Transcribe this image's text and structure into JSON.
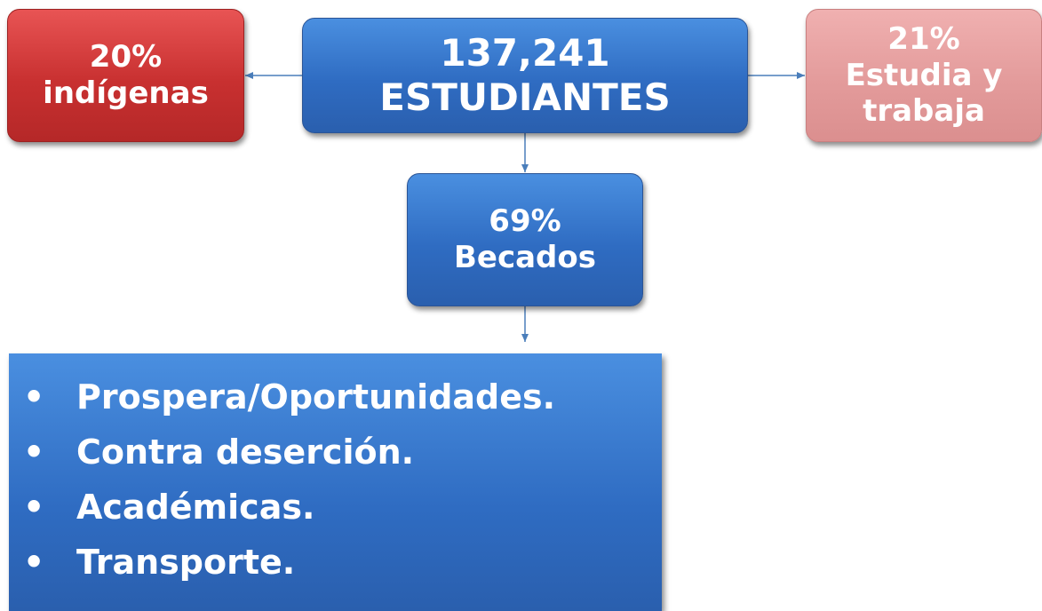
{
  "nodes": [
    {
      "lines": [
        "137,241",
        "ESTUDIANTES"
      ]
    },
    {
      "lines": [
        "20%",
        "indígenas"
      ]
    },
    {
      "lines": [
        "21%",
        "Estudia y",
        "trabaja"
      ]
    },
    {
      "lines": [
        "69%",
        "Becados"
      ]
    }
  ],
  "list": {
    "items": [
      "Prospera/Oportunidades.",
      "Contra deserción.",
      "Académicas.",
      "Transporte."
    ]
  }
}
